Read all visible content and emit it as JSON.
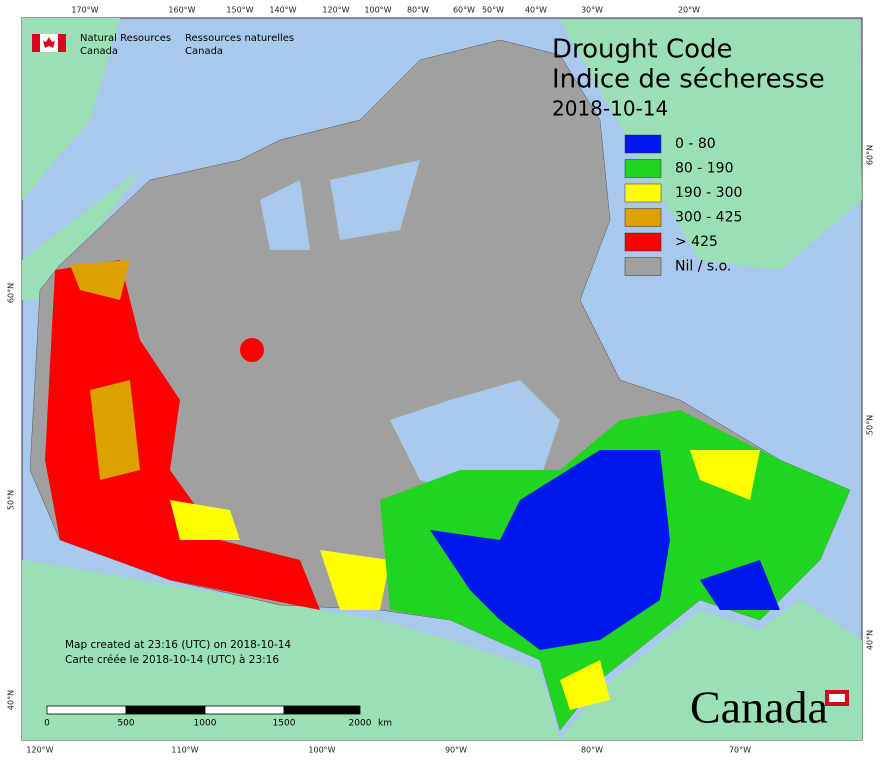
{
  "header": {
    "org_en": [
      "Natural Resources",
      "Canada"
    ],
    "org_fr": [
      "Ressources naturelles",
      "Canada"
    ]
  },
  "title": [
    "Drought Code",
    "Indice de sécheresse"
  ],
  "date": "2018-10-14",
  "legend": [
    {
      "label": "0 - 80",
      "color": "#0018f0"
    },
    {
      "label": "80 - 190",
      "color": "#1fd51f"
    },
    {
      "label": "190 - 300",
      "color": "#ffff00"
    },
    {
      "label": "300 - 425",
      "color": "#dca000"
    },
    {
      "label": "> 425",
      "color": "#ff0000"
    },
    {
      "label": "Nil / s.o.",
      "color": "#a0a0a0"
    }
  ],
  "graticule": {
    "top": [
      "170°W",
      "160°W",
      "150°W",
      "140°W",
      "120°W",
      "100°W",
      "80°W",
      "60°W",
      "50°W",
      "40°W",
      "30°W",
      "20°W"
    ],
    "bottom": [
      "120°W",
      "110°W",
      "100°W",
      "90°W",
      "80°W",
      "70°W"
    ],
    "left": [
      "60°N",
      "50°N",
      "40°N"
    ],
    "right": [
      "60°N",
      "50°N",
      "40°N"
    ]
  },
  "footer": [
    "Map created at 23:16 (UTC) on 2018-10-14",
    "Carte créée le 2018-10-14 (UTC) à 23:16"
  ],
  "scale_bar": {
    "ticks": [
      "0",
      "500",
      "1000",
      "1500",
      "2000"
    ],
    "unit": "km"
  },
  "wordmark": "Canada"
}
